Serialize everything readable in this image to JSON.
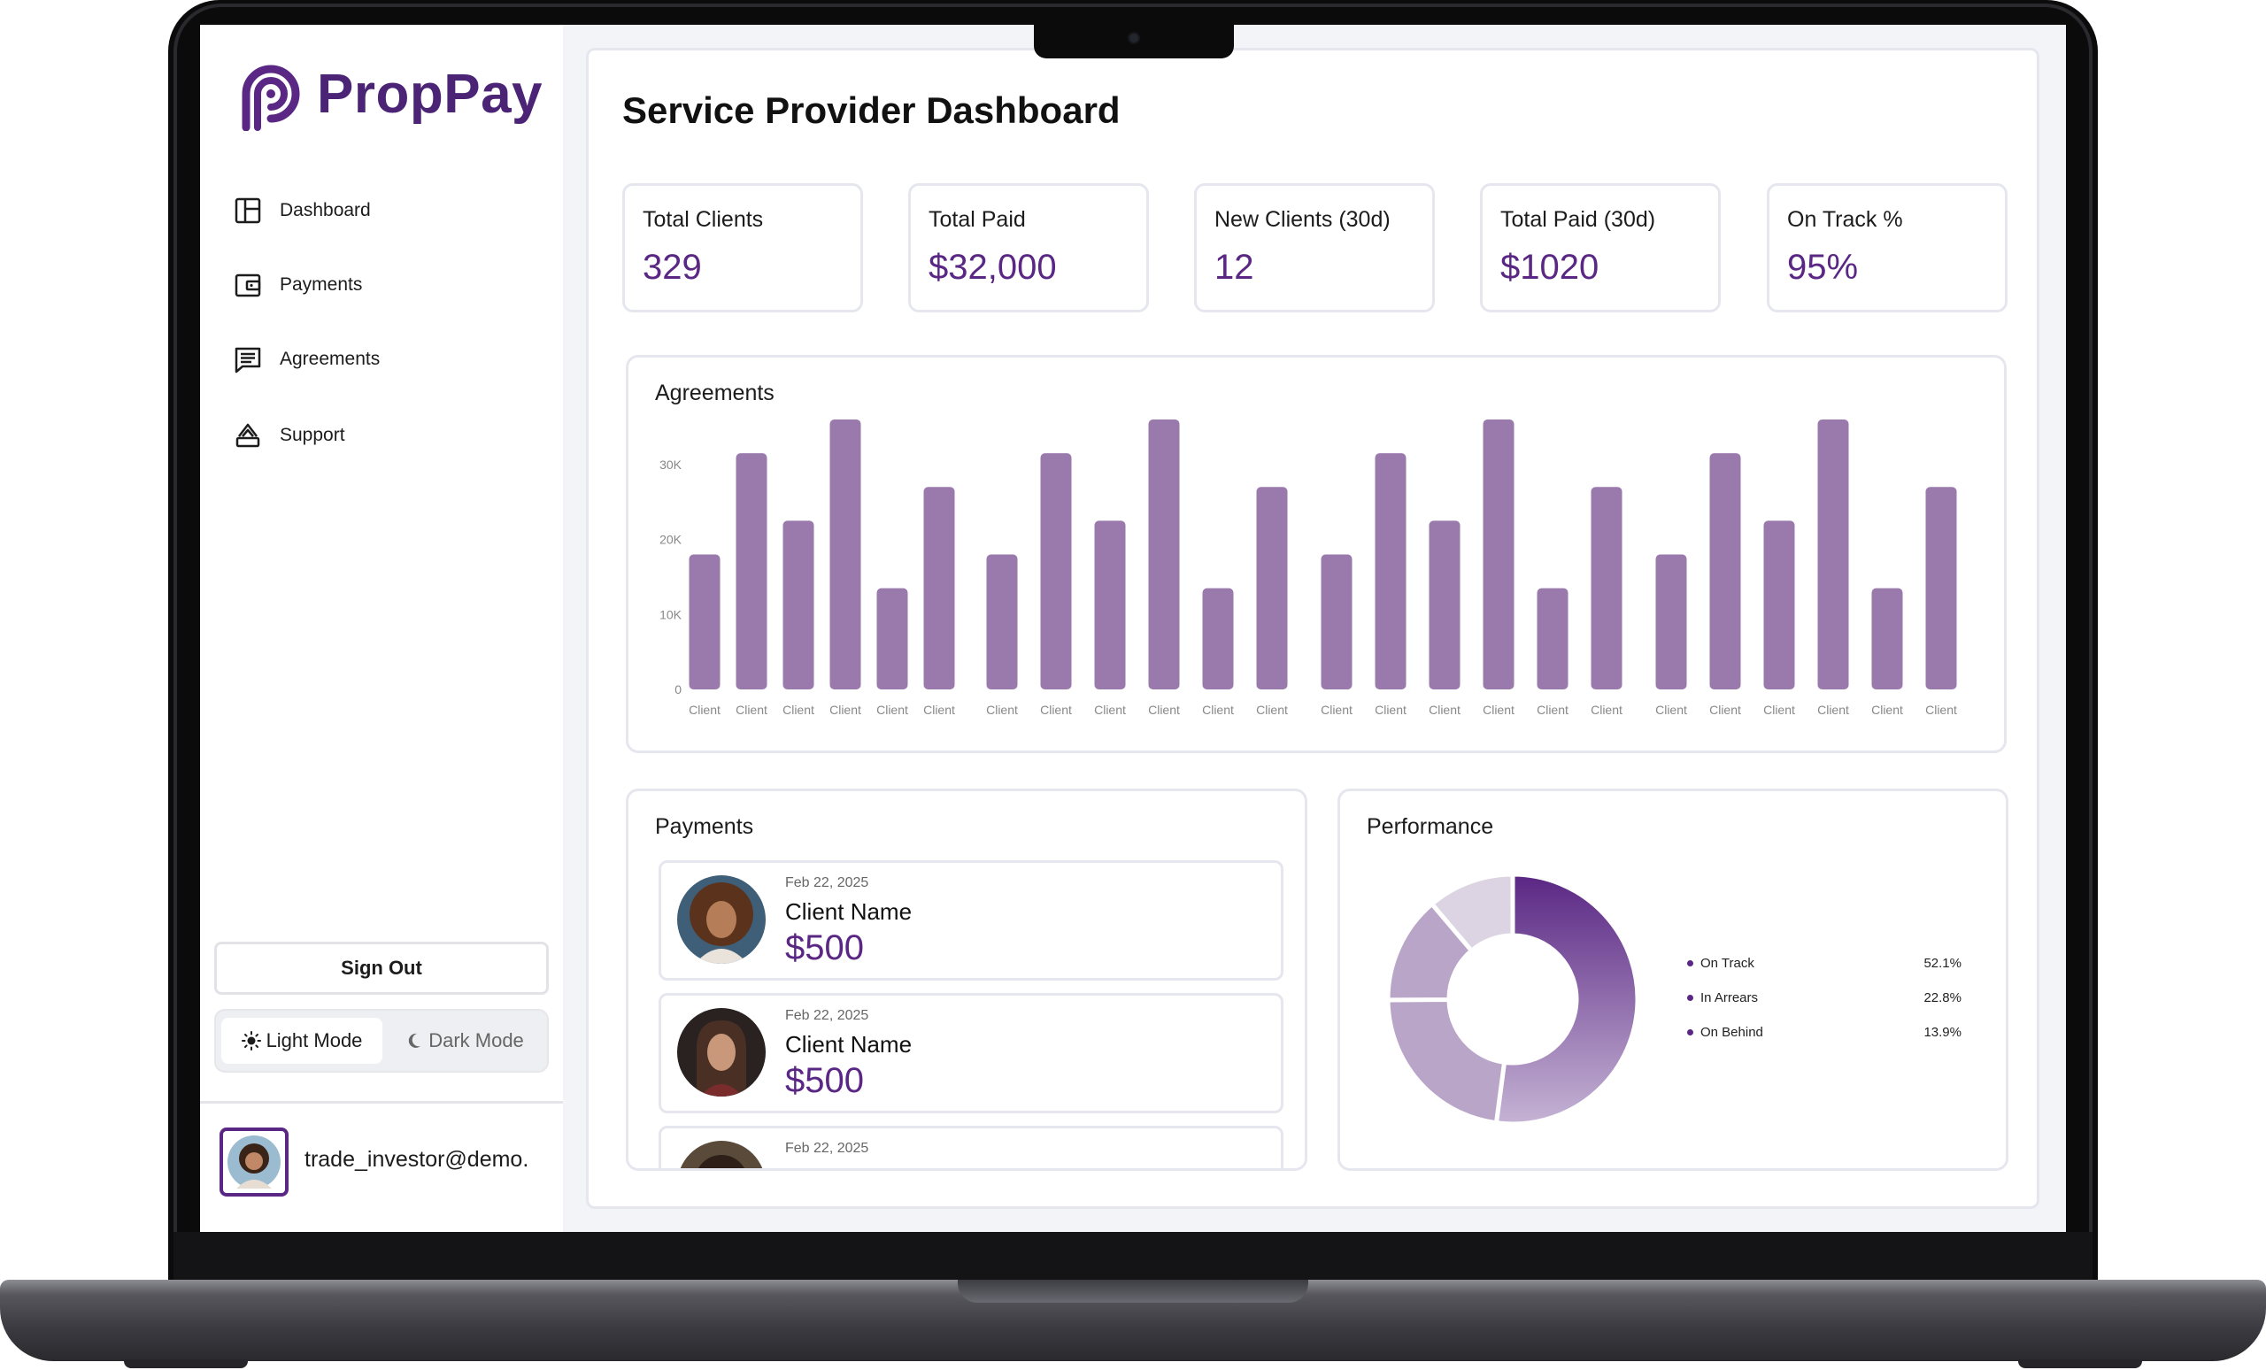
{
  "brand": {
    "name": "PropPay",
    "accent": "#5a2784",
    "bar_color": "#9a7aad"
  },
  "sidebar": {
    "items": [
      {
        "label": "Dashboard",
        "icon": "dashboard-icon"
      },
      {
        "label": "Payments",
        "icon": "wallet-icon"
      },
      {
        "label": "Agreements",
        "icon": "message-icon"
      },
      {
        "label": "Support",
        "icon": "support-icon"
      }
    ],
    "sign_out": "Sign Out",
    "light_mode": "Light Mode",
    "dark_mode": "Dark Mode",
    "user_email": "trade_investor@demo."
  },
  "main": {
    "title": "Service Provider Dashboard",
    "stats": [
      {
        "label": "Total Clients",
        "value": "329"
      },
      {
        "label": "Total Paid",
        "value": "$32,000"
      },
      {
        "label": "New Clients (30d)",
        "value": "12"
      },
      {
        "label": "Total Paid (30d)",
        "value": "$1020"
      },
      {
        "label": "On Track %",
        "value": "95%"
      }
    ],
    "agreements_title": "Agreements",
    "payments_title": "Payments",
    "performance_title": "Performance",
    "payments": [
      {
        "date": "Feb 22, 2025",
        "name": "Client Name",
        "amount": "$500"
      },
      {
        "date": "Feb 22, 2025",
        "name": "Client Name",
        "amount": "$500"
      },
      {
        "date": "Feb 22, 2025",
        "name": "",
        "amount": ""
      }
    ]
  },
  "chart_data": [
    {
      "type": "bar",
      "title": "Agreements",
      "xlabel": "",
      "ylabel": "",
      "ylim": [
        0,
        36000
      ],
      "yticks": [
        "0",
        "10K",
        "20K",
        "30K"
      ],
      "categories": [
        "Client",
        "Client",
        "Client",
        "Client",
        "Client",
        "Client",
        "Client",
        "Client",
        "Client",
        "Client",
        "Client",
        "Client",
        "Client",
        "Client",
        "Client",
        "Client",
        "Client",
        "Client",
        "Client",
        "Client",
        "Client",
        "Client",
        "Client",
        "Client"
      ],
      "values": [
        18000,
        31500,
        22500,
        36000,
        13500,
        27000,
        18000,
        31500,
        22500,
        36000,
        13500,
        27000,
        18000,
        31500,
        22500,
        36000,
        13500,
        27000,
        18000,
        31500,
        22500,
        36000,
        13500,
        27000
      ]
    },
    {
      "type": "pie",
      "title": "Performance",
      "labels": [
        "On Track",
        "In Arrears",
        "On Behind"
      ],
      "values": [
        52.1,
        22.8,
        13.9
      ],
      "value_labels": [
        "52.1%",
        "22.8%",
        "13.9%"
      ],
      "unlabeled_remainder": 11.2
    }
  ]
}
